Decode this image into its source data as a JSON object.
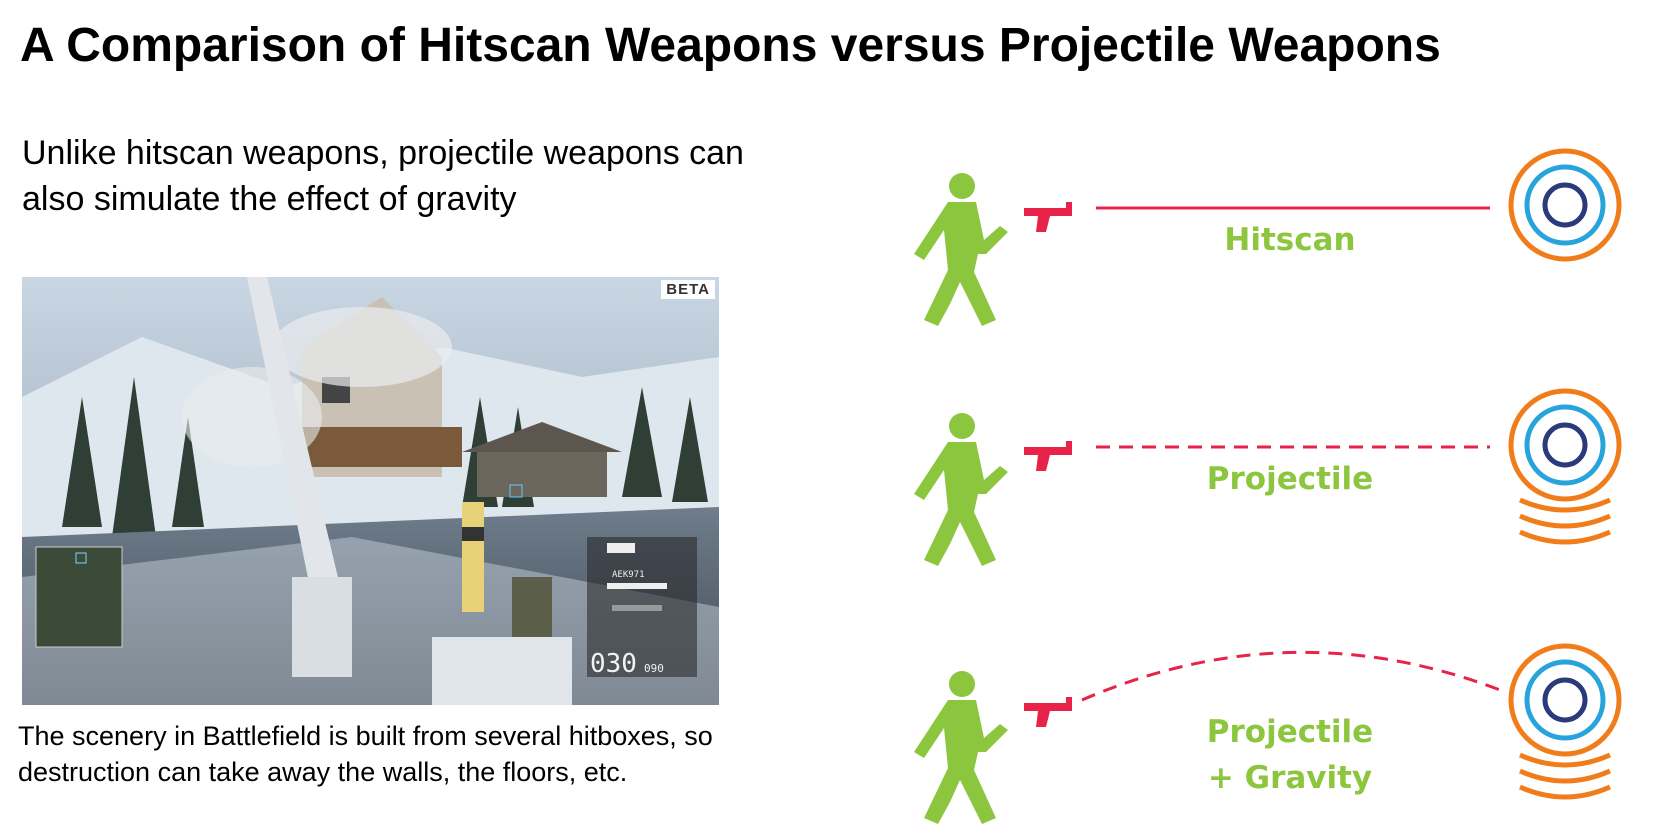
{
  "title": "A Comparison of Hitscan Weapons versus Projectile Weapons",
  "intro": {
    "line1": "Unlike hitscan weapons, projectile weapons can",
    "line2": "also simulate the effect of gravity"
  },
  "screenshot": {
    "badge": "BETA",
    "hud_ammo": "030",
    "hud_ammo_reserve": "090",
    "hud_weapon": "AEK971"
  },
  "caption": {
    "line1": "The scenery in Battlefield is built from several hitboxes, so",
    "line2": "destruction can take away the walls, the floors, etc."
  },
  "rows": [
    {
      "label": "Hitscan",
      "line_style": "solid",
      "target_style": "still"
    },
    {
      "label": "Projectile",
      "line_style": "dashed",
      "target_style": "moving"
    },
    {
      "label1": "Projectile",
      "label2": "+ Gravity",
      "line_style": "dashed-arc",
      "target_style": "moving"
    }
  ],
  "colors": {
    "figure": "#8cc63f",
    "gun": "#e8234a",
    "ring_outer": "#f07d1a",
    "ring_middle": "#29a3dc",
    "ring_inner": "#2b3a7a"
  }
}
